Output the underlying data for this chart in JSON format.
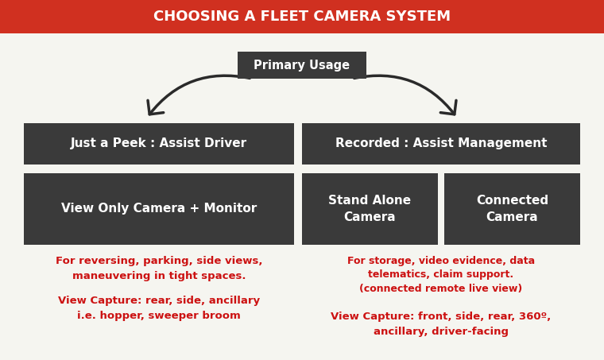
{
  "title": "CHOOSING A FLEET CAMERA SYSTEM",
  "title_bg": "#d03020",
  "title_text_color": "#ffffff",
  "bg_color": "#f5f5f0",
  "box_color": "#3a3a3a",
  "box_text_color": "#ffffff",
  "red_text_color": "#cc1111",
  "arrow_color": "#2a2a2a",
  "primary_usage_label": "Primary Usage",
  "left_box1_text": "Just a Peek : Assist Driver",
  "left_box2_text": "View Only Camera + Monitor",
  "right_box1_text": "Recorded : Assist Management",
  "right_box2a_text": "Stand Alone\nCamera",
  "right_box2b_text": "Connected\nCamera",
  "left_desc1": "For reversing, parking, side views,\nmaneuvering in tight spaces.",
  "left_desc2": "View Capture: rear, side, ancillary\ni.e. hopper, sweeper broom",
  "right_desc1": "For storage, video evidence, data\ntelematics, claim support.\n(connected remote live view)",
  "right_desc2": "View Capture: front, side, rear, 360º,\nancillary, driver-facing",
  "fig_w": 7.6,
  "fig_h": 4.53,
  "dpi": 100
}
